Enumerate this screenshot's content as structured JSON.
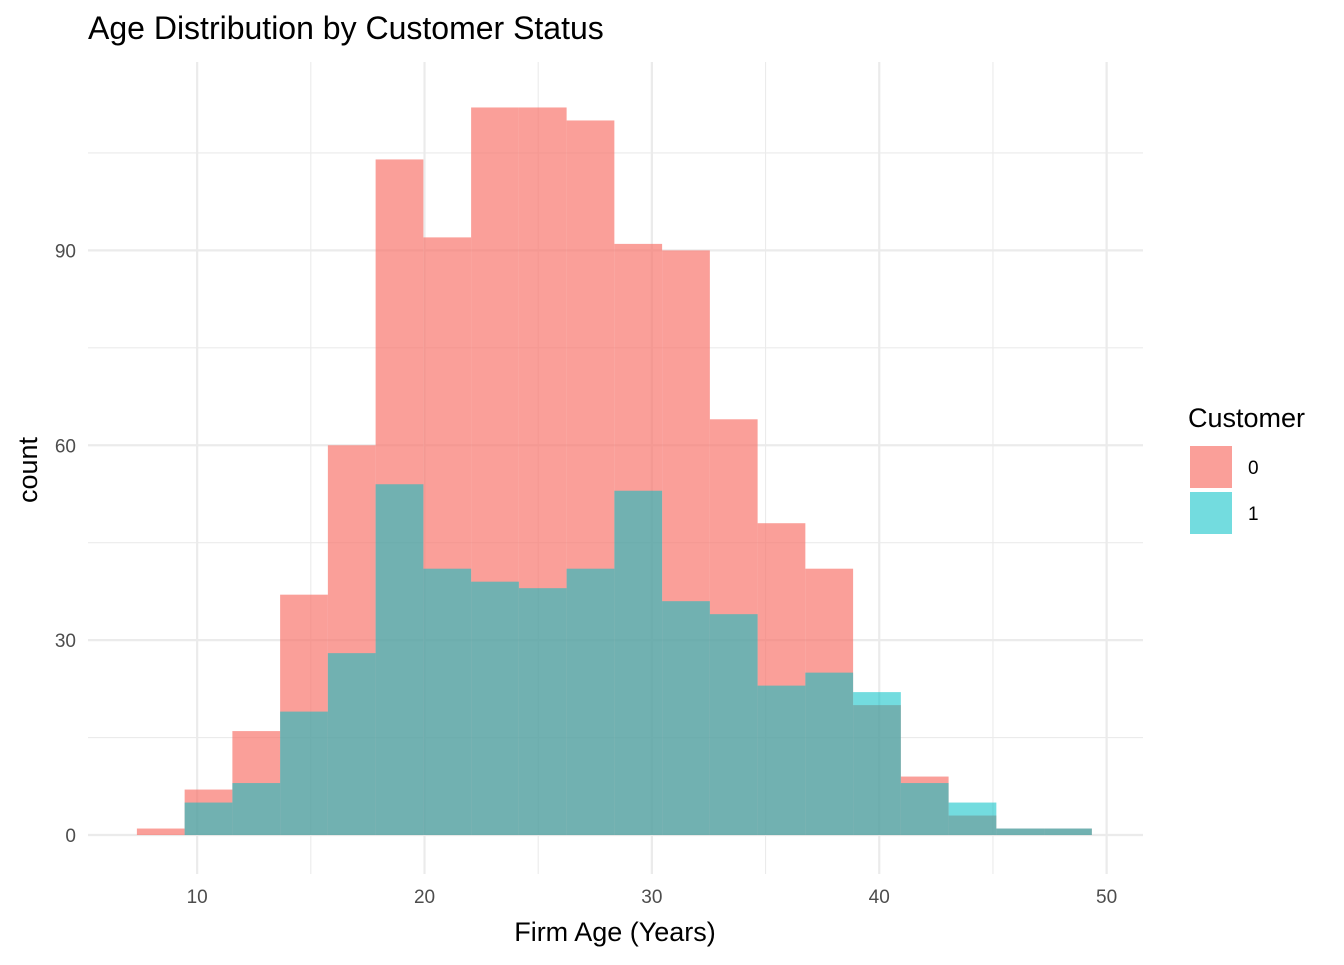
{
  "chart_data": {
    "type": "bar",
    "title": "Age Distribution by Customer Status",
    "xlabel": "Firm Age (Years)",
    "ylabel": "count",
    "xlim": [
      5.2,
      51.6
    ],
    "ylim": [
      -6,
      119
    ],
    "x_ticks": [
      10,
      20,
      30,
      40,
      50
    ],
    "y_ticks": [
      0,
      30,
      60,
      90
    ],
    "grid": true,
    "legend": {
      "title": "Customer",
      "position": "right",
      "entries": [
        "0",
        "1"
      ]
    },
    "bin_width": 2.1,
    "bins": [
      [
        7.35,
        9.45
      ],
      [
        9.45,
        11.55
      ],
      [
        11.55,
        13.65
      ],
      [
        13.65,
        15.75
      ],
      [
        15.75,
        17.85
      ],
      [
        17.85,
        19.95
      ],
      [
        19.95,
        22.05
      ],
      [
        22.05,
        24.15
      ],
      [
        24.15,
        26.25
      ],
      [
        26.25,
        28.35
      ],
      [
        28.35,
        30.45
      ],
      [
        30.45,
        32.55
      ],
      [
        32.55,
        34.65
      ],
      [
        34.65,
        36.75
      ],
      [
        36.75,
        38.85
      ],
      [
        38.85,
        40.95
      ],
      [
        40.95,
        43.05
      ],
      [
        43.05,
        45.15
      ],
      [
        45.15,
        47.25
      ],
      [
        47.25,
        49.35
      ]
    ],
    "series": [
      {
        "name": "0",
        "color": "#F8766D",
        "values": [
          1,
          7,
          16,
          37,
          60,
          104,
          92,
          112,
          112,
          110,
          91,
          90,
          64,
          48,
          41,
          20,
          9,
          3,
          1,
          1
        ]
      },
      {
        "name": "1",
        "color": "#00BFC4",
        "values": [
          0,
          5,
          8,
          19,
          28,
          54,
          41,
          39,
          38,
          41,
          53,
          36,
          34,
          23,
          25,
          22,
          8,
          5,
          1,
          1
        ]
      }
    ]
  }
}
